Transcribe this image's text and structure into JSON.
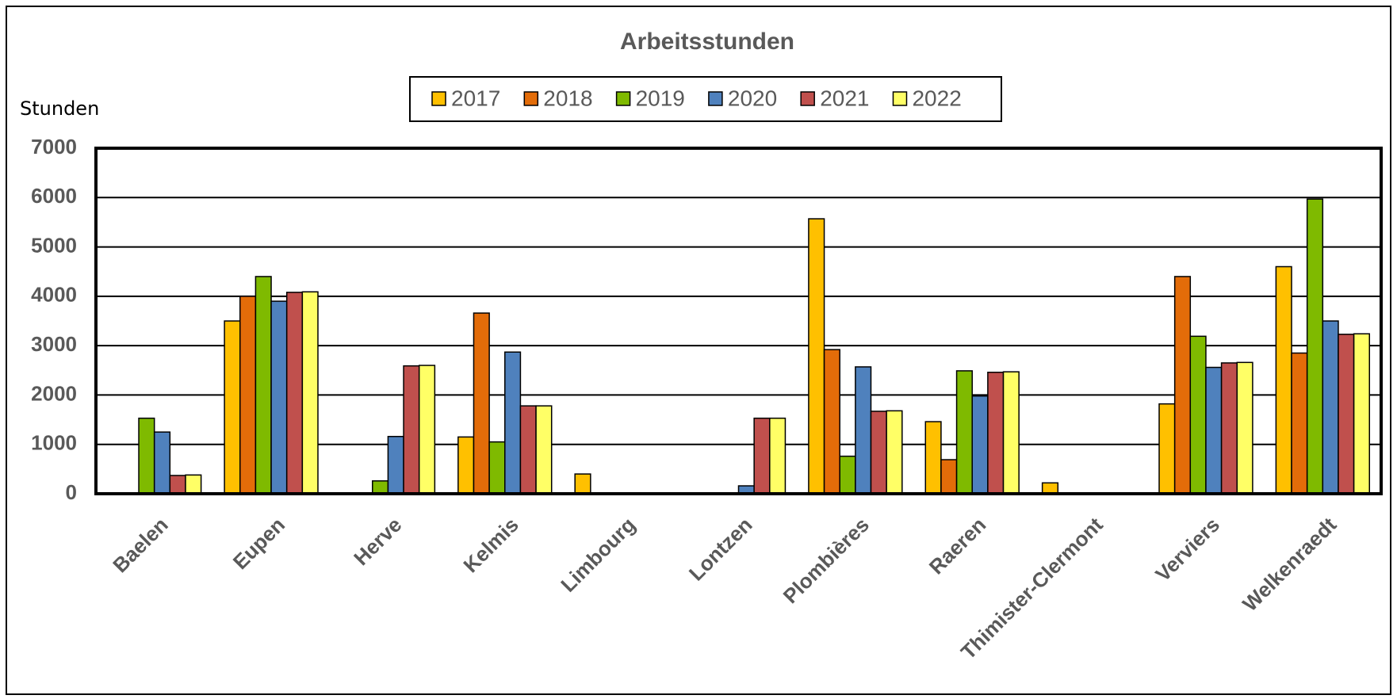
{
  "chart_data": {
    "type": "bar",
    "title": "Arbeitsstunden",
    "y_label": "Stunden",
    "categories": [
      "Baelen",
      "Eupen",
      "Herve",
      "Kelmis",
      "Limbourg",
      "Lontzen",
      "Plombières",
      "Raeren",
      "Thimister-Clermont",
      "Verviers",
      "Welkenraedt"
    ],
    "series": [
      {
        "name": "2017",
        "color": "#ffc000",
        "values": [
          0,
          3500,
          0,
          1150,
          400,
          0,
          5570,
          1460,
          220,
          1820,
          4600
        ]
      },
      {
        "name": "2018",
        "color": "#e36c09",
        "values": [
          0,
          4000,
          0,
          3660,
          0,
          0,
          2920,
          690,
          0,
          4400,
          2850
        ]
      },
      {
        "name": "2019",
        "color": "#7fba00",
        "values": [
          1530,
          4400,
          260,
          1050,
          0,
          0,
          760,
          2490,
          0,
          3190,
          5970
        ]
      },
      {
        "name": "2020",
        "color": "#4f81bd",
        "values": [
          1250,
          3900,
          1160,
          2870,
          0,
          160,
          2570,
          1980,
          0,
          2560,
          3500
        ]
      },
      {
        "name": "2021",
        "color": "#c0504d",
        "values": [
          370,
          4080,
          2590,
          1780,
          0,
          1530,
          1670,
          2460,
          0,
          2650,
          3230
        ]
      },
      {
        "name": "2022",
        "color": "#ffff66",
        "values": [
          380,
          4090,
          2600,
          1780,
          0,
          1530,
          1680,
          2470,
          0,
          2660,
          3240
        ]
      }
    ],
    "ylim": [
      0,
      7000
    ],
    "yticks": [
      0,
      1000,
      2000,
      3000,
      4000,
      5000,
      6000,
      7000
    ],
    "grid": true,
    "legend": "top"
  }
}
